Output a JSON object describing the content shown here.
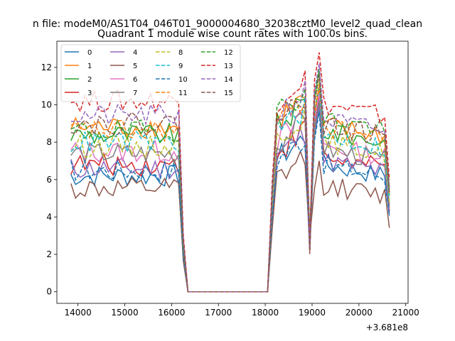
{
  "chart_data": {
    "type": "line",
    "suptitle": "n file: modeM0/AS1T04_046T01_9000004680_32038cztM0_level2_quad_clean",
    "title": "Quadrant 1 module wise count rates with 100.0s bins.",
    "xlabel": "",
    "ylabel": "",
    "x_offset_label": "+3.681e8",
    "xlim": [
      13550,
      21050
    ],
    "ylim": [
      -0.62,
      13.4
    ],
    "xticks": [
      14000,
      15000,
      16000,
      17000,
      18000,
      19000,
      20000,
      21000
    ],
    "yticks": [
      0,
      2,
      4,
      6,
      8,
      10,
      12
    ],
    "grid": false,
    "legend": {
      "placement": "top-left",
      "columns": 4
    },
    "series": [
      {
        "name": "0",
        "color": "#1f77b4",
        "dash": "solid",
        "level1": 6.2,
        "level2": 6.8,
        "spike": 9.8
      },
      {
        "name": "1",
        "color": "#ff7f0e",
        "dash": "solid",
        "level1": 8.8,
        "level2": 8.9,
        "spike": 10.8
      },
      {
        "name": "2",
        "color": "#2ca02c",
        "dash": "solid",
        "level1": 8.4,
        "level2": 8.6,
        "spike": 11.8
      },
      {
        "name": "3",
        "color": "#d62728",
        "dash": "solid",
        "level1": 6.8,
        "level2": 7.2,
        "spike": 10.5
      },
      {
        "name": "4",
        "color": "#9467bd",
        "dash": "solid",
        "level1": 6.6,
        "level2": 7.0,
        "spike": 10.0
      },
      {
        "name": "5",
        "color": "#8c564b",
        "dash": "solid",
        "level1": 5.5,
        "level2": 5.7,
        "spike": 7.0
      },
      {
        "name": "6",
        "color": "#e377c2",
        "dash": "solid",
        "level1": 7.5,
        "level2": 7.8,
        "spike": 10.6
      },
      {
        "name": "7",
        "color": "#7f7f7f",
        "dash": "solid",
        "level1": 7.4,
        "level2": 7.6,
        "spike": 10.2
      },
      {
        "name": "8",
        "color": "#bcbd22",
        "dash": "dashed",
        "level1": 7.8,
        "level2": 8.0,
        "spike": 11.2
      },
      {
        "name": "9",
        "color": "#17becf",
        "dash": "dashed",
        "level1": 8.0,
        "level2": 8.3,
        "spike": 11.0
      },
      {
        "name": "10",
        "color": "#1f77b4",
        "dash": "dashed",
        "level1": 6.5,
        "level2": 6.8,
        "spike": 9.6
      },
      {
        "name": "11",
        "color": "#ff7f0e",
        "dash": "dashed",
        "level1": 8.6,
        "level2": 8.8,
        "spike": 11.0
      },
      {
        "name": "12",
        "color": "#2ca02c",
        "dash": "dashed",
        "level1": 8.6,
        "level2": 9.3,
        "spike": 11.9
      },
      {
        "name": "13",
        "color": "#d62728",
        "dash": "dashed",
        "level1": 10.2,
        "level2": 10.0,
        "spike": 12.8
      },
      {
        "name": "14",
        "color": "#9467bd",
        "dash": "dashed",
        "level1": 9.4,
        "level2": 9.2,
        "spike": 12.2
      },
      {
        "name": "15",
        "color": "#8c564b",
        "dash": "dashed",
        "level1": 9.0,
        "level2": 8.9,
        "spike": 11.6
      }
    ]
  }
}
